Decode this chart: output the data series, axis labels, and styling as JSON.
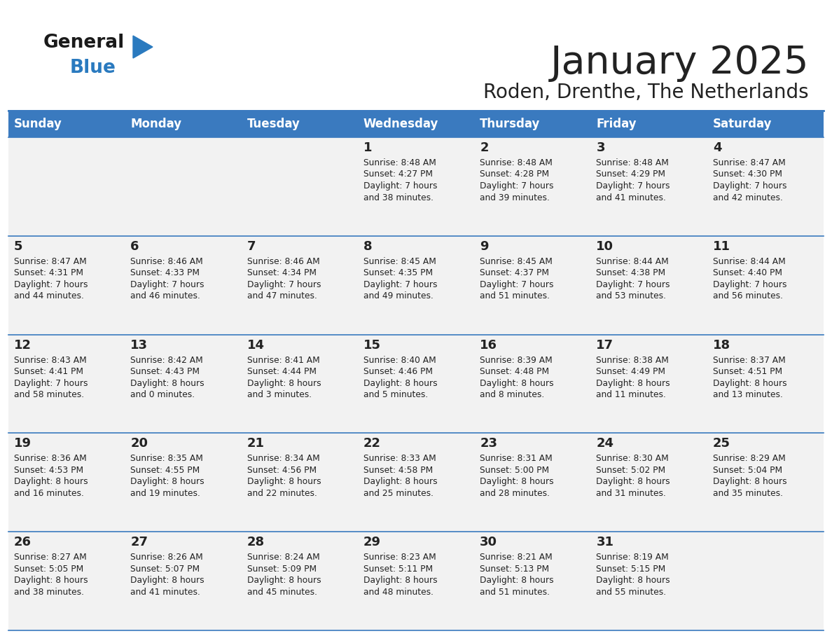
{
  "title": "January 2025",
  "subtitle": "Roden, Drenthe, The Netherlands",
  "header_color": "#3a7abf",
  "header_text_color": "#ffffff",
  "cell_bg_color": "#f2f2f2",
  "border_color": "#3a7abf",
  "text_color": "#222222",
  "days_of_week": [
    "Sunday",
    "Monday",
    "Tuesday",
    "Wednesday",
    "Thursday",
    "Friday",
    "Saturday"
  ],
  "calendar_data": [
    [
      {
        "day": "",
        "sunrise": "",
        "sunset": "",
        "daylight": ""
      },
      {
        "day": "",
        "sunrise": "",
        "sunset": "",
        "daylight": ""
      },
      {
        "day": "",
        "sunrise": "",
        "sunset": "",
        "daylight": ""
      },
      {
        "day": "1",
        "sunrise": "8:48 AM",
        "sunset": "4:27 PM",
        "daylight": "7 hours\nand 38 minutes."
      },
      {
        "day": "2",
        "sunrise": "8:48 AM",
        "sunset": "4:28 PM",
        "daylight": "7 hours\nand 39 minutes."
      },
      {
        "day": "3",
        "sunrise": "8:48 AM",
        "sunset": "4:29 PM",
        "daylight": "7 hours\nand 41 minutes."
      },
      {
        "day": "4",
        "sunrise": "8:47 AM",
        "sunset": "4:30 PM",
        "daylight": "7 hours\nand 42 minutes."
      }
    ],
    [
      {
        "day": "5",
        "sunrise": "8:47 AM",
        "sunset": "4:31 PM",
        "daylight": "7 hours\nand 44 minutes."
      },
      {
        "day": "6",
        "sunrise": "8:46 AM",
        "sunset": "4:33 PM",
        "daylight": "7 hours\nand 46 minutes."
      },
      {
        "day": "7",
        "sunrise": "8:46 AM",
        "sunset": "4:34 PM",
        "daylight": "7 hours\nand 47 minutes."
      },
      {
        "day": "8",
        "sunrise": "8:45 AM",
        "sunset": "4:35 PM",
        "daylight": "7 hours\nand 49 minutes."
      },
      {
        "day": "9",
        "sunrise": "8:45 AM",
        "sunset": "4:37 PM",
        "daylight": "7 hours\nand 51 minutes."
      },
      {
        "day": "10",
        "sunrise": "8:44 AM",
        "sunset": "4:38 PM",
        "daylight": "7 hours\nand 53 minutes."
      },
      {
        "day": "11",
        "sunrise": "8:44 AM",
        "sunset": "4:40 PM",
        "daylight": "7 hours\nand 56 minutes."
      }
    ],
    [
      {
        "day": "12",
        "sunrise": "8:43 AM",
        "sunset": "4:41 PM",
        "daylight": "7 hours\nand 58 minutes."
      },
      {
        "day": "13",
        "sunrise": "8:42 AM",
        "sunset": "4:43 PM",
        "daylight": "8 hours\nand 0 minutes."
      },
      {
        "day": "14",
        "sunrise": "8:41 AM",
        "sunset": "4:44 PM",
        "daylight": "8 hours\nand 3 minutes."
      },
      {
        "day": "15",
        "sunrise": "8:40 AM",
        "sunset": "4:46 PM",
        "daylight": "8 hours\nand 5 minutes."
      },
      {
        "day": "16",
        "sunrise": "8:39 AM",
        "sunset": "4:48 PM",
        "daylight": "8 hours\nand 8 minutes."
      },
      {
        "day": "17",
        "sunrise": "8:38 AM",
        "sunset": "4:49 PM",
        "daylight": "8 hours\nand 11 minutes."
      },
      {
        "day": "18",
        "sunrise": "8:37 AM",
        "sunset": "4:51 PM",
        "daylight": "8 hours\nand 13 minutes."
      }
    ],
    [
      {
        "day": "19",
        "sunrise": "8:36 AM",
        "sunset": "4:53 PM",
        "daylight": "8 hours\nand 16 minutes."
      },
      {
        "day": "20",
        "sunrise": "8:35 AM",
        "sunset": "4:55 PM",
        "daylight": "8 hours\nand 19 minutes."
      },
      {
        "day": "21",
        "sunrise": "8:34 AM",
        "sunset": "4:56 PM",
        "daylight": "8 hours\nand 22 minutes."
      },
      {
        "day": "22",
        "sunrise": "8:33 AM",
        "sunset": "4:58 PM",
        "daylight": "8 hours\nand 25 minutes."
      },
      {
        "day": "23",
        "sunrise": "8:31 AM",
        "sunset": "5:00 PM",
        "daylight": "8 hours\nand 28 minutes."
      },
      {
        "day": "24",
        "sunrise": "8:30 AM",
        "sunset": "5:02 PM",
        "daylight": "8 hours\nand 31 minutes."
      },
      {
        "day": "25",
        "sunrise": "8:29 AM",
        "sunset": "5:04 PM",
        "daylight": "8 hours\nand 35 minutes."
      }
    ],
    [
      {
        "day": "26",
        "sunrise": "8:27 AM",
        "sunset": "5:05 PM",
        "daylight": "8 hours\nand 38 minutes."
      },
      {
        "day": "27",
        "sunrise": "8:26 AM",
        "sunset": "5:07 PM",
        "daylight": "8 hours\nand 41 minutes."
      },
      {
        "day": "28",
        "sunrise": "8:24 AM",
        "sunset": "5:09 PM",
        "daylight": "8 hours\nand 45 minutes."
      },
      {
        "day": "29",
        "sunrise": "8:23 AM",
        "sunset": "5:11 PM",
        "daylight": "8 hours\nand 48 minutes."
      },
      {
        "day": "30",
        "sunrise": "8:21 AM",
        "sunset": "5:13 PM",
        "daylight": "8 hours\nand 51 minutes."
      },
      {
        "day": "31",
        "sunrise": "8:19 AM",
        "sunset": "5:15 PM",
        "daylight": "8 hours\nand 55 minutes."
      },
      {
        "day": "",
        "sunrise": "",
        "sunset": "",
        "daylight": ""
      }
    ]
  ],
  "logo_text_general": "General",
  "logo_text_blue": "Blue",
  "logo_color_general": "#1a1a1a",
  "logo_color_blue": "#2a7abf",
  "logo_triangle_color": "#2a7abf"
}
